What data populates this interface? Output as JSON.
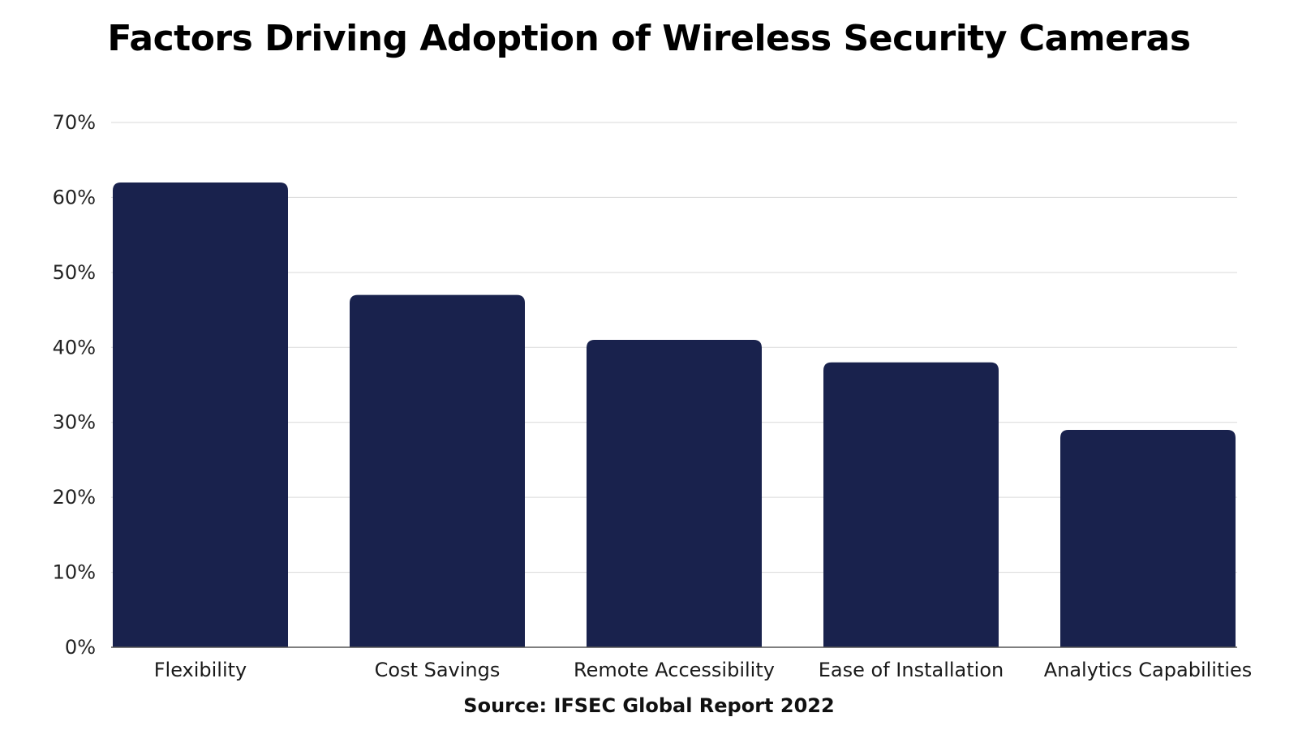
{
  "colors": {
    "bar": "#19224d",
    "grid": "#d9d9d9",
    "axis": "#555555",
    "background": "#ffffff"
  },
  "chart_data": {
    "type": "bar",
    "title": "Factors Driving Adoption of Wireless Security Cameras",
    "categories": [
      "Flexibility",
      "Cost Savings",
      "Remote Accessibility",
      "Ease of Installation",
      "Analytics Capabilities"
    ],
    "values": [
      62,
      47,
      41,
      38,
      29
    ],
    "ylim": [
      0,
      70
    ],
    "yticks": [
      0,
      10,
      20,
      30,
      40,
      50,
      60,
      70
    ],
    "ytick_labels": [
      "0%",
      "10%",
      "20%",
      "30%",
      "40%",
      "50%",
      "60%",
      "70%"
    ],
    "grid": true,
    "legend": "none",
    "source": "Source: IFSEC Global Report 2022"
  }
}
